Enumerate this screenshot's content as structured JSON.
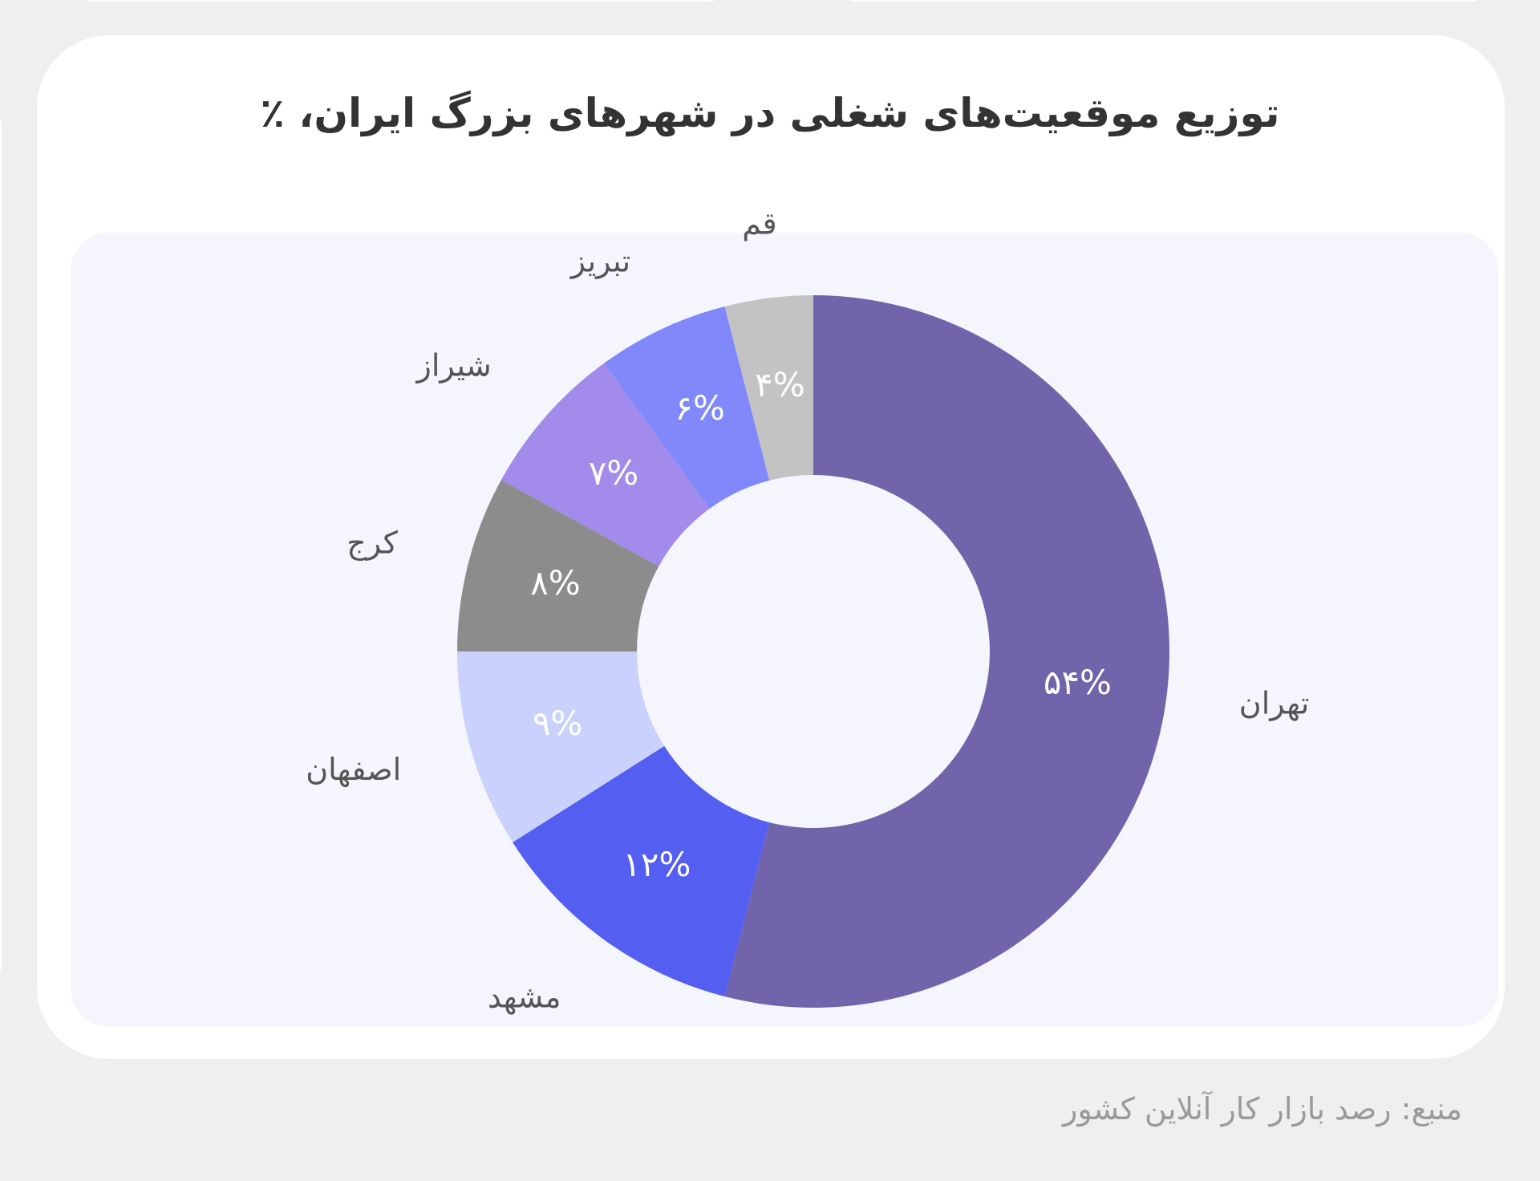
{
  "chart_data": {
    "type": "pie",
    "title": "توزیع موقعیت‌های شغلی در شهرهای بزرگ ایران، ٪",
    "categories": [
      "تهران",
      "مشهد",
      "اصفهان",
      "کرج",
      "شیراز",
      "تبریز",
      "قم"
    ],
    "values": [
      54,
      12,
      9,
      8,
      7,
      6,
      4
    ],
    "value_labels": [
      "۵۴%",
      "۱۲%",
      "۹%",
      "۸%",
      "۷%",
      "۶%",
      "۴%"
    ],
    "colors": [
      "#7264aa",
      "#545ef0",
      "#c9d1fc",
      "#8c8c8c",
      "#a28bea",
      "#8088fa",
      "#c3c3c3"
    ],
    "donut": true,
    "start": "top",
    "direction": "clockwise"
  },
  "source": "منبع: رصد بازار کار آنلاین کشور"
}
